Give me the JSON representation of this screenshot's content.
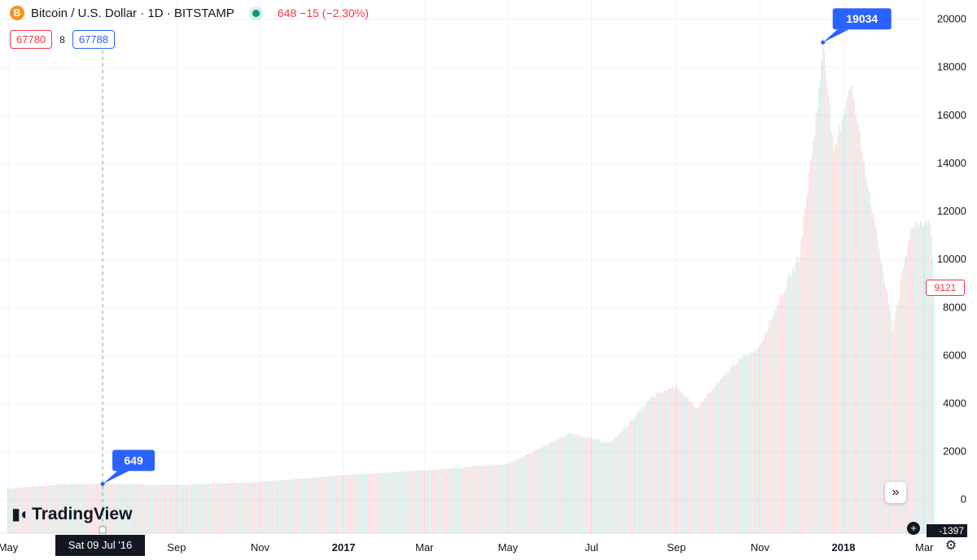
{
  "header": {
    "symbol_icon": "B",
    "title": "Bitcoin / U.S. Dollar · 1D · BITSTAMP",
    "price_change": "648 −15 (−2.30%)",
    "sell_price": "67780",
    "spread": "8",
    "buy_price": "67788"
  },
  "branding": {
    "logo_text": "TradingView"
  },
  "crosshair_label": "Sat 09 Jul '16",
  "last_price_label": "9121",
  "axis_low_label": "-1397",
  "colors": {
    "up": "#089981",
    "down": "#f23645",
    "callout": "#2962ff"
  },
  "chart_data": {
    "type": "bar",
    "ylim": [
      -1397,
      20800
    ],
    "y_ticks": [
      0,
      2000,
      4000,
      6000,
      8000,
      10000,
      12000,
      14000,
      16000,
      18000,
      20000
    ],
    "x_ticks": [
      {
        "date": "2016-05-01",
        "label": "May",
        "bold": false
      },
      {
        "date": "2016-09-01",
        "label": "Sep",
        "bold": false
      },
      {
        "date": "2016-11-01",
        "label": "Nov",
        "bold": false
      },
      {
        "date": "2017-01-01",
        "label": "2017",
        "bold": true
      },
      {
        "date": "2017-03-01",
        "label": "Mar",
        "bold": false
      },
      {
        "date": "2017-05-01",
        "label": "May",
        "bold": false
      },
      {
        "date": "2017-07-01",
        "label": "Jul",
        "bold": false
      },
      {
        "date": "2017-09-01",
        "label": "Sep",
        "bold": false
      },
      {
        "date": "2017-11-01",
        "label": "Nov",
        "bold": false
      },
      {
        "date": "2018-01-01",
        "label": "2018",
        "bold": true
      },
      {
        "date": "2018-03-01",
        "label": "Mar",
        "bold": false
      }
    ],
    "xlim": [
      "2016-05-01",
      "2018-03-08"
    ],
    "crosshair_date": "2016-07-09",
    "anchors": [
      {
        "date": "2016-05-01",
        "value": 450
      },
      {
        "date": "2016-06-15",
        "value": 650
      },
      {
        "date": "2016-07-09",
        "value": 649
      },
      {
        "date": "2016-09-01",
        "value": 600
      },
      {
        "date": "2016-11-01",
        "value": 720
      },
      {
        "date": "2017-01-01",
        "value": 1000
      },
      {
        "date": "2017-03-01",
        "value": 1200
      },
      {
        "date": "2017-05-01",
        "value": 1450
      },
      {
        "date": "2017-06-15",
        "value": 2700
      },
      {
        "date": "2017-07-15",
        "value": 2300
      },
      {
        "date": "2017-08-15",
        "value": 4200
      },
      {
        "date": "2017-09-01",
        "value": 4700
      },
      {
        "date": "2017-09-15",
        "value": 3700
      },
      {
        "date": "2017-10-15",
        "value": 5600
      },
      {
        "date": "2017-11-01",
        "value": 6300
      },
      {
        "date": "2017-11-30",
        "value": 10000
      },
      {
        "date": "2017-12-15",
        "value": 17000
      },
      {
        "date": "2017-12-17",
        "value": 19034
      },
      {
        "date": "2017-12-25",
        "value": 14000
      },
      {
        "date": "2018-01-06",
        "value": 17100
      },
      {
        "date": "2018-01-20",
        "value": 12500
      },
      {
        "date": "2018-02-06",
        "value": 7000
      },
      {
        "date": "2018-02-20",
        "value": 11200
      },
      {
        "date": "2018-03-05",
        "value": 11400
      },
      {
        "date": "2018-03-08",
        "value": 9121
      }
    ],
    "callouts": [
      {
        "date": "2017-12-17",
        "value": 19034,
        "label": "19034",
        "side": "right"
      },
      {
        "date": "2016-07-09",
        "value": 649,
        "label": "649",
        "side": "right"
      }
    ]
  }
}
